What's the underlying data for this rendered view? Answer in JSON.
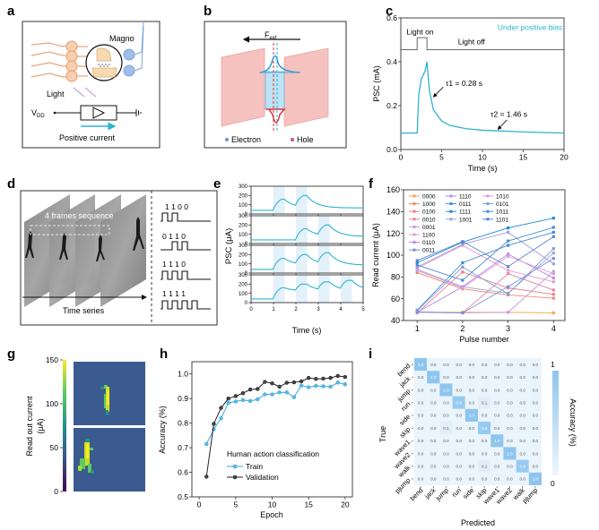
{
  "panel_labels": [
    "a",
    "b",
    "c",
    "d",
    "e",
    "f",
    "g",
    "h",
    "i"
  ],
  "panel_a": {
    "magno": "Magno",
    "light": "Light",
    "vdd": "V",
    "vdd_sub": "DD",
    "current": "Positive current"
  },
  "panel_b": {
    "force": "F",
    "force_sub": "ext",
    "electron": "Electron",
    "hole": "Hole"
  },
  "panel_d": {
    "sequence_label": "4 frames sequence",
    "time_series": "Time series",
    "codes": [
      "1 1 0 0",
      "0 1 1 0",
      "1 1 1 0",
      "1 1 1 1"
    ]
  },
  "colors": {
    "cyan": "#2fb3d0",
    "train": "#3aa7dd",
    "validation": "#222222",
    "heat_bg": "#3b5a8f",
    "cm_high": "#8ec5ef",
    "cm_low": "#eaf4fc"
  },
  "chart_data": [
    {
      "id": "c",
      "type": "line",
      "title": "",
      "annotation_bias": "Under positive bias",
      "light_on": "Light on",
      "light_off": "Light off",
      "tau1": "τ1 = 0.28 s",
      "tau2": "τ2 = 1.46 s",
      "xlabel": "Time (s)",
      "ylabel": "PSC (mA)",
      "xlim": [
        0,
        20
      ],
      "ylim": [
        0,
        0.6
      ],
      "xticks": [
        0,
        5,
        10,
        15,
        20
      ],
      "yticks": [
        0.0,
        0.2,
        0.4,
        0.6
      ],
      "ytick_labels": [
        "0.0",
        "0.2",
        "0.4",
        "0.6"
      ],
      "pulse": {
        "on": 2,
        "off": 3.2
      },
      "series": [
        {
          "name": "PSC",
          "x": [
            0,
            2,
            2.2,
            2.5,
            3,
            3.2,
            3.5,
            4,
            5,
            6,
            8,
            10,
            12,
            15,
            20
          ],
          "y": [
            0.075,
            0.075,
            0.25,
            0.32,
            0.36,
            0.4,
            0.27,
            0.18,
            0.13,
            0.11,
            0.095,
            0.088,
            0.085,
            0.08,
            0.075
          ]
        }
      ]
    },
    {
      "id": "e",
      "type": "line",
      "xlabel": "Time (s)",
      "ylabel": "PSC (μA)",
      "xlim": [
        0,
        5
      ],
      "ylim": [
        0,
        300
      ],
      "xticks": [
        0,
        1,
        2,
        3,
        4,
        5
      ],
      "yticks": [
        0,
        100,
        200,
        300
      ],
      "subplots": [
        {
          "code": "1100",
          "pulses": [
            1,
            2
          ],
          "peaks": [
            160,
            200
          ],
          "end": 65
        },
        {
          "code": "0110",
          "pulses": [
            2,
            3
          ],
          "peaks": [
            160,
            200
          ],
          "end": 75
        },
        {
          "code": "1110",
          "pulses": [
            1,
            2,
            3
          ],
          "peaks": [
            160,
            200,
            220
          ],
          "end": 85
        },
        {
          "code": "1111",
          "pulses": [
            1,
            2,
            3,
            4
          ],
          "peaks": [
            160,
            200,
            225,
            240
          ],
          "end": 125
        }
      ],
      "baseline": 40
    },
    {
      "id": "f",
      "type": "line",
      "xlabel": "Pulse number",
      "ylabel": "Read current (μA)",
      "xlim": [
        0.7,
        4.25
      ],
      "ylim": [
        40,
        160
      ],
      "xticks": [
        1,
        2,
        3,
        4
      ],
      "yticks": [
        40,
        60,
        80,
        100,
        120,
        140,
        160
      ],
      "legend_position": "top-left",
      "series": [
        {
          "name": "0000",
          "color": "#f0a64a",
          "values": [
            47.5,
            47.5,
            47.5,
            47
          ]
        },
        {
          "name": "1000",
          "color": "#ee8a6b",
          "values": [
            84,
            69,
            63.5,
            60.5
          ]
        },
        {
          "name": "0100",
          "color": "#ec7f86",
          "values": [
            47,
            84.5,
            70,
            64
          ]
        },
        {
          "name": "0010",
          "color": "#e8839f",
          "values": [
            47.5,
            47,
            83,
            68
          ]
        },
        {
          "name": "0001",
          "color": "#c99ad6",
          "values": [
            47.5,
            47,
            47.5,
            85
          ]
        },
        {
          "name": "1100",
          "color": "#e59ad0",
          "values": [
            88,
            109,
            86,
            75.5
          ]
        },
        {
          "name": "0110",
          "color": "#b98bd8",
          "values": [
            47.5,
            71,
            101,
            79
          ]
        },
        {
          "name": "0011",
          "color": "#7a8fd6",
          "values": [
            48,
            47,
            71,
            97
          ]
        },
        {
          "name": "1110",
          "color": "#a29ae0",
          "values": [
            89,
            110,
            121,
            92
          ]
        },
        {
          "name": "0111",
          "color": "#3f8fd6",
          "values": [
            49.5,
            93,
            109,
            121
          ]
        },
        {
          "name": "1111",
          "color": "#1f8ad6",
          "values": [
            93,
            112,
            125,
            134
          ]
        },
        {
          "name": "1001",
          "color": "#9fa3da",
          "values": [
            87,
            71,
            65,
            102
          ]
        },
        {
          "name": "1010",
          "color": "#dc9adf",
          "values": [
            86,
            70,
            99,
            83
          ]
        },
        {
          "name": "0101",
          "color": "#7b9fd9",
          "values": [
            49,
            89,
            64.5,
            106
          ]
        },
        {
          "name": "1011",
          "color": "#4a8fd2",
          "values": [
            91,
            77,
            113,
            125.5
          ]
        },
        {
          "name": "1101",
          "color": "#5a84cc",
          "values": [
            95,
            112.5,
            89.5,
            117
          ]
        }
      ]
    },
    {
      "id": "g",
      "type": "heatmap",
      "colorbar_label": "Read out current",
      "colorbar_unit": "(μA)",
      "colorbar_range": [
        0,
        150
      ],
      "colorbar_ticks": [
        0,
        50,
        100,
        150
      ]
    },
    {
      "id": "h",
      "type": "line",
      "xlabel": "Epoch",
      "ylabel": "Accuracy (%)",
      "xlim": [
        -1,
        21
      ],
      "ylim": [
        0.5,
        1.05
      ],
      "xticks": [
        0,
        5,
        10,
        15,
        20
      ],
      "yticks": [
        0.5,
        0.6,
        0.7,
        0.8,
        0.9,
        1.0
      ],
      "ytick_labels": [
        "0.5",
        "0.6",
        "0.7",
        "0.8",
        "0.9",
        "1.0"
      ],
      "legend_title": "Human action classification",
      "legend_position": "bottom-right",
      "x": [
        1,
        2,
        3,
        4,
        5,
        6,
        7,
        8,
        9,
        10,
        11,
        12,
        13,
        14,
        15,
        16,
        17,
        18,
        19,
        20
      ],
      "series": [
        {
          "name": "Train",
          "values": [
            0.715,
            0.775,
            0.82,
            0.882,
            0.888,
            0.894,
            0.89,
            0.897,
            0.917,
            0.917,
            0.925,
            0.925,
            0.906,
            0.953,
            0.946,
            0.952,
            0.95,
            0.948,
            0.965,
            0.958
          ]
        },
        {
          "name": "Validation",
          "values": [
            0.582,
            0.797,
            0.862,
            0.9,
            0.91,
            0.922,
            0.937,
            0.939,
            0.968,
            0.962,
            0.948,
            0.964,
            0.966,
            0.97,
            0.984,
            0.98,
            0.981,
            0.984,
            0.992,
            0.988
          ]
        }
      ]
    },
    {
      "id": "i",
      "type": "heatmap",
      "xlabel": "Predicted",
      "ylabel": "True",
      "colorbar_label": "Accuracy (%)",
      "colorbar_range": [
        0,
        1
      ],
      "colorbar_ticks": [
        "0",
        "1"
      ],
      "labels": [
        "bend",
        "jack",
        "jump",
        "run",
        "side",
        "skip",
        "wave1",
        "wave2",
        "walk",
        "pjump"
      ],
      "matrix": [
        [
          1.0,
          0.0,
          0.0,
          0.0,
          0.0,
          0.0,
          0.0,
          0.0,
          0.0,
          0.0
        ],
        [
          0.0,
          1.0,
          0.0,
          0.0,
          0.0,
          0.0,
          0.0,
          0.0,
          0.0,
          0.0
        ],
        [
          0.0,
          0.0,
          1.0,
          0.0,
          0.0,
          0.0,
          0.0,
          0.0,
          0.0,
          0.0
        ],
        [
          0.0,
          0.0,
          0.0,
          0.9,
          0.0,
          0.1,
          0.0,
          0.0,
          0.0,
          0.0
        ],
        [
          0.0,
          0.0,
          0.0,
          0.0,
          1.0,
          0.0,
          0.0,
          0.0,
          0.0,
          0.0
        ],
        [
          0.0,
          0.0,
          0.1,
          0.0,
          0.0,
          0.9,
          0.0,
          0.0,
          0.0,
          0.0
        ],
        [
          0.0,
          0.0,
          0.0,
          0.0,
          0.0,
          0.0,
          1.0,
          0.0,
          0.0,
          0.0
        ],
        [
          0.0,
          0.0,
          0.0,
          0.0,
          0.0,
          0.0,
          0.0,
          1.0,
          0.0,
          0.0
        ],
        [
          0.0,
          0.0,
          0.0,
          0.0,
          0.0,
          0.1,
          0.0,
          0.0,
          0.9,
          0.0
        ],
        [
          0.0,
          0.0,
          0.0,
          0.0,
          0.0,
          0.0,
          0.0,
          0.0,
          0.0,
          1.0
        ]
      ]
    }
  ]
}
